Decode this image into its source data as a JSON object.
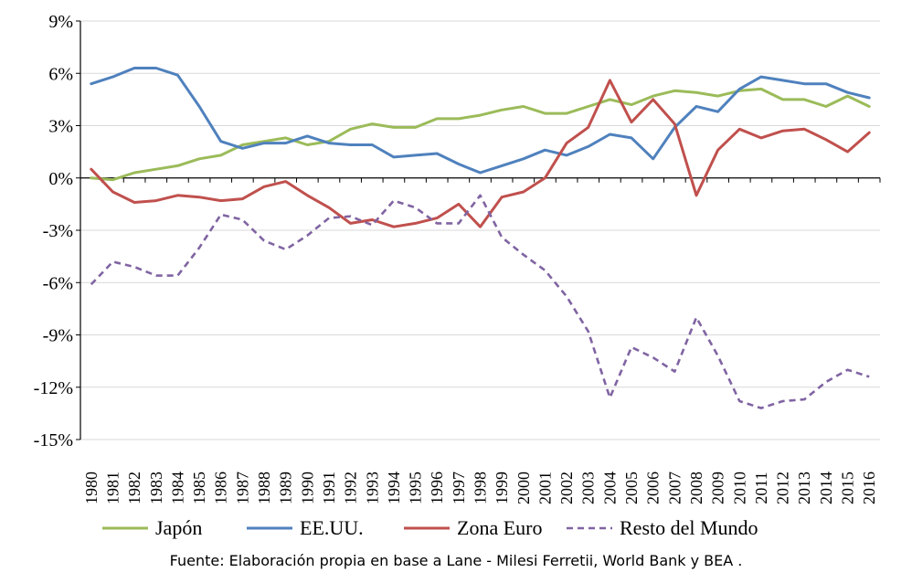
{
  "chart_data": {
    "type": "line",
    "x": [
      "1980",
      "1981",
      "1982",
      "1983",
      "1984",
      "1985",
      "1986",
      "1987",
      "1988",
      "1989",
      "1990",
      "1991",
      "1992",
      "1993",
      "1994",
      "1995",
      "1996",
      "1997",
      "1998",
      "1999",
      "2000",
      "2001",
      "2002",
      "2003",
      "2004",
      "2005",
      "2006",
      "2007",
      "2008",
      "2009",
      "2010",
      "2011",
      "2012",
      "2013",
      "2014",
      "2015",
      "2016"
    ],
    "ylim": [
      -15,
      9
    ],
    "yticks": [
      9,
      6,
      3,
      0,
      -3,
      -6,
      -9,
      -12,
      -15
    ],
    "ytick_labels": [
      "9%",
      "6%",
      "3%",
      "0%",
      "-3%",
      "-6%",
      "-9%",
      "-12%",
      "-15%"
    ],
    "grid": "horizontal",
    "legend_position": "bottom",
    "series": [
      {
        "name": "Japón",
        "color": "#9bbb59",
        "dash": "solid",
        "values": [
          0.0,
          -0.1,
          0.3,
          0.5,
          0.7,
          1.1,
          1.3,
          1.9,
          2.1,
          2.3,
          1.9,
          2.1,
          2.8,
          3.1,
          2.9,
          2.9,
          3.4,
          3.4,
          3.6,
          3.9,
          4.1,
          3.7,
          3.7,
          4.1,
          4.5,
          4.2,
          4.7,
          5.0,
          4.9,
          4.7,
          5.0,
          5.1,
          4.5,
          4.5,
          4.1,
          4.7,
          4.1
        ]
      },
      {
        "name": "EE.UU.",
        "color": "#4f81bd",
        "dash": "solid",
        "values": [
          5.4,
          5.8,
          6.3,
          6.3,
          5.9,
          4.1,
          2.1,
          1.7,
          2.0,
          2.0,
          2.4,
          2.0,
          1.9,
          1.9,
          1.2,
          1.3,
          1.4,
          0.8,
          0.3,
          0.7,
          1.1,
          1.6,
          1.3,
          1.8,
          2.5,
          2.3,
          1.1,
          2.9,
          4.1,
          3.8,
          5.1,
          5.8,
          5.6,
          5.4,
          5.4,
          4.9,
          4.6
        ]
      },
      {
        "name": "Zona Euro",
        "color": "#c0504d",
        "dash": "solid",
        "values": [
          0.5,
          -0.8,
          -1.4,
          -1.3,
          -1.0,
          -1.1,
          -1.3,
          -1.2,
          -0.5,
          -0.2,
          -1.0,
          -1.7,
          -2.6,
          -2.4,
          -2.8,
          -2.6,
          -2.3,
          -1.5,
          -2.8,
          -1.1,
          -0.8,
          0.0,
          2.0,
          2.9,
          5.6,
          3.2,
          4.5,
          3.1,
          -1.0,
          1.6,
          2.8,
          2.3,
          2.7,
          2.8,
          2.2,
          1.5,
          2.6
        ]
      },
      {
        "name": "Resto del Mundo",
        "color": "#8064a2",
        "dash": "dashed",
        "values": [
          -6.1,
          -4.8,
          -5.1,
          -5.6,
          -5.6,
          -4.0,
          -2.1,
          -2.4,
          -3.6,
          -4.1,
          -3.3,
          -2.3,
          -2.2,
          -2.7,
          -1.3,
          -1.7,
          -2.6,
          -2.6,
          -1.0,
          -3.4,
          -4.4,
          -5.3,
          -6.8,
          -8.8,
          -12.6,
          -9.7,
          -10.3,
          -11.1,
          -8.0,
          -10.2,
          -12.8,
          -13.2,
          -12.8,
          -12.7,
          -11.7,
          -11.0,
          -11.4
        ]
      }
    ]
  },
  "source_note": "Fuente: Elaboración propia en base a Lane - Milesi Ferretii, World Bank y BEA ."
}
